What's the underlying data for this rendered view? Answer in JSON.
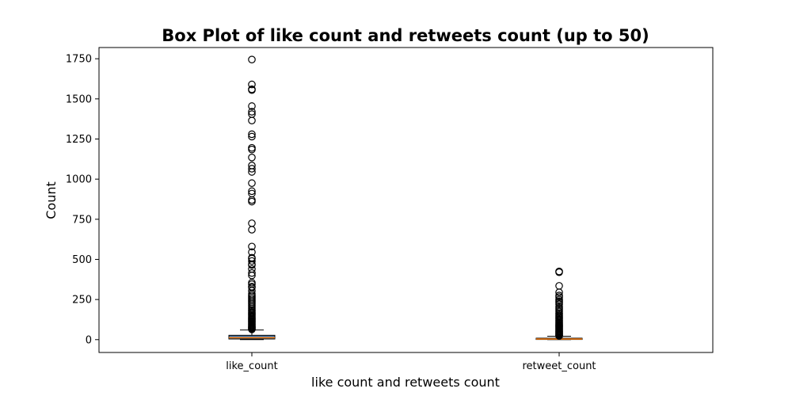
{
  "chart_data": {
    "type": "box",
    "title": "Box Plot of like count and retweets count (up to 50)",
    "xlabel": "like count and retweets count",
    "ylabel": "Count",
    "ylim": [
      -80,
      1820
    ],
    "yticks": [
      0,
      250,
      500,
      750,
      1000,
      1250,
      1500,
      1750
    ],
    "grid": false,
    "categories": [
      "like_count",
      "retweet_count"
    ],
    "boxes": [
      {
        "category": "like_count",
        "whisker_low": 0,
        "q1": 4,
        "median": 12,
        "q3": 27,
        "whisker_high": 60,
        "outliers": [
          1745,
          1590,
          1560,
          1555,
          1455,
          1420,
          1405,
          1365,
          1280,
          1265,
          1195,
          1185,
          1135,
          1085,
          1065,
          1045,
          975,
          925,
          910,
          870,
          860,
          725,
          685,
          580,
          545,
          510,
          505,
          490,
          470,
          465,
          440,
          415,
          400,
          355,
          345,
          330,
          325,
          305,
          285,
          275,
          265,
          255,
          245,
          235,
          225,
          215,
          205,
          195,
          185,
          178,
          170,
          163,
          156,
          149,
          142,
          136,
          130,
          124,
          118,
          112,
          106,
          100,
          95,
          90,
          85,
          80,
          76,
          72,
          68,
          64
        ]
      },
      {
        "category": "retweet_count",
        "whisker_low": 0,
        "q1": 1,
        "median": 4,
        "q3": 9,
        "whisker_high": 21,
        "outliers": [
          425,
          420,
          335,
          295,
          275,
          265,
          250,
          240,
          230,
          220,
          205,
          195,
          185,
          175,
          165,
          158,
          150,
          143,
          136,
          129,
          122,
          116,
          110,
          104,
          98,
          92,
          87,
          82,
          77,
          72,
          67,
          62,
          57,
          53,
          49,
          45,
          41,
          37,
          33,
          29,
          26,
          23
        ]
      }
    ],
    "colors": {
      "box_fill": "#4a78a8",
      "median_line": "#ff7f0e",
      "line": "#000000"
    }
  }
}
